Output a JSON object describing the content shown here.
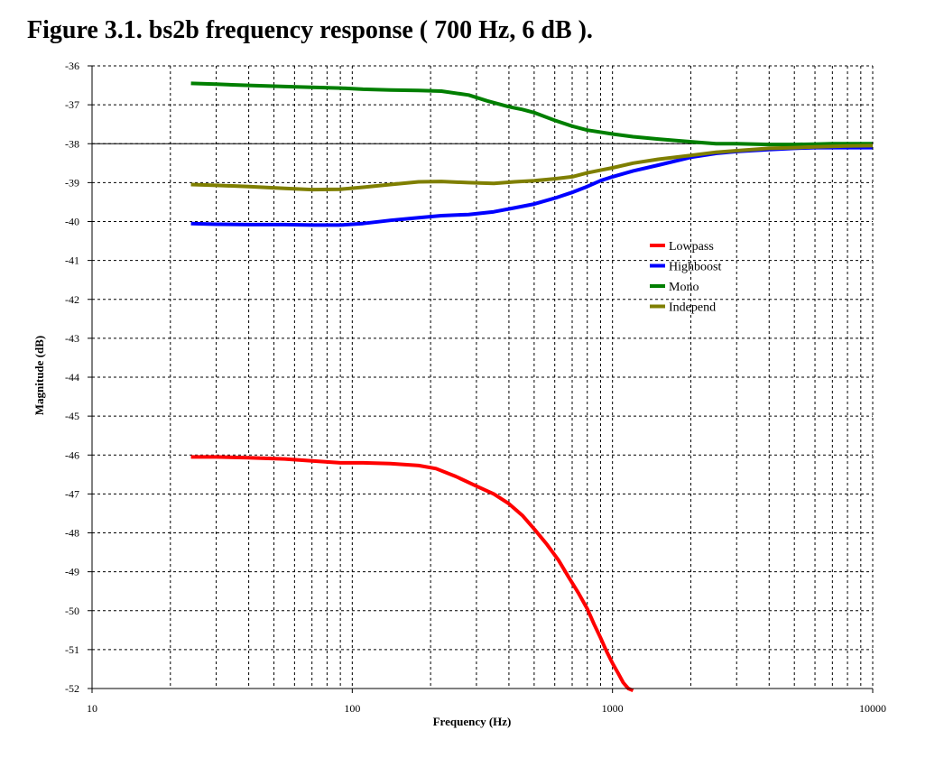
{
  "figure": {
    "title": "Figure 3.1. bs2b frequency response ( 700 Hz, 6 dB )."
  },
  "chart_data": {
    "type": "line",
    "title": "",
    "xlabel": "Frequency (Hz)",
    "ylabel": "Magnitude (dB)",
    "xscale": "log",
    "xlim": [
      10,
      10000
    ],
    "ylim": [
      -52,
      -36
    ],
    "xticks": [
      10,
      100,
      1000,
      10000
    ],
    "xtick_labels": [
      "10",
      "100",
      "1000",
      "10000"
    ],
    "yticks": [
      -36,
      -37,
      -38,
      -39,
      -40,
      -41,
      -42,
      -43,
      -44,
      -45,
      -46,
      -47,
      -48,
      -49,
      -50,
      -51,
      -52
    ],
    "ytick_labels": [
      "-36",
      "-37",
      "-38",
      "-39",
      "-40",
      "-41",
      "-42",
      "-43",
      "-44",
      "-45",
      "-46",
      "-47",
      "-48",
      "-49",
      "-50",
      "-51",
      "-52"
    ],
    "grid": true,
    "reference_line": -38,
    "legend": {
      "position": "right-middle"
    },
    "series": [
      {
        "name": "Lowpass",
        "color": "#ff0000",
        "x": [
          24,
          30,
          40,
          55,
          70,
          90,
          110,
          140,
          180,
          210,
          250,
          300,
          350,
          400,
          450,
          500,
          560,
          620,
          680,
          740,
          800,
          850,
          900,
          950,
          1000,
          1050,
          1100,
          1150,
          1200
        ],
        "y": [
          -46.05,
          -46.05,
          -46.07,
          -46.1,
          -46.15,
          -46.2,
          -46.2,
          -46.22,
          -46.27,
          -46.35,
          -46.55,
          -46.8,
          -47.0,
          -47.25,
          -47.55,
          -47.9,
          -48.3,
          -48.7,
          -49.15,
          -49.55,
          -49.95,
          -50.35,
          -50.7,
          -51.05,
          -51.35,
          -51.6,
          -51.85,
          -52.0,
          -52.05
        ]
      },
      {
        "name": "Highboost",
        "color": "#0000ff",
        "x": [
          24,
          30,
          40,
          55,
          70,
          90,
          110,
          140,
          180,
          220,
          280,
          350,
          420,
          500,
          600,
          700,
          800,
          900,
          1000,
          1200,
          1500,
          2000,
          2500,
          3000,
          4000,
          5000,
          6000,
          7000,
          8000,
          9000,
          10000
        ],
        "y": [
          -40.05,
          -40.07,
          -40.08,
          -40.08,
          -40.09,
          -40.09,
          -40.05,
          -39.97,
          -39.9,
          -39.85,
          -39.82,
          -39.75,
          -39.65,
          -39.55,
          -39.4,
          -39.25,
          -39.1,
          -38.95,
          -38.85,
          -38.7,
          -38.55,
          -38.35,
          -38.25,
          -38.2,
          -38.15,
          -38.12,
          -38.1,
          -38.1,
          -38.1,
          -38.1,
          -38.1
        ]
      },
      {
        "name": "Mono",
        "color": "#007f00",
        "x": [
          24,
          30,
          40,
          55,
          70,
          90,
          110,
          140,
          180,
          220,
          280,
          330,
          400,
          450,
          500,
          600,
          700,
          800,
          1000,
          1200,
          1500,
          2000,
          2500,
          3000,
          4000,
          5000,
          6000,
          7000,
          8000,
          10000
        ],
        "y": [
          -36.45,
          -36.47,
          -36.5,
          -36.53,
          -36.55,
          -36.57,
          -36.6,
          -36.62,
          -36.63,
          -36.65,
          -36.75,
          -36.9,
          -37.05,
          -37.12,
          -37.2,
          -37.4,
          -37.55,
          -37.65,
          -37.75,
          -37.82,
          -37.88,
          -37.95,
          -38.0,
          -38.0,
          -38.02,
          -38.02,
          -38.01,
          -38.0,
          -38.0,
          -38.0
        ]
      },
      {
        "name": "Independ",
        "color": "#7f7f00",
        "x": [
          24,
          30,
          40,
          55,
          70,
          90,
          110,
          140,
          180,
          220,
          280,
          350,
          420,
          500,
          600,
          700,
          800,
          900,
          1000,
          1200,
          1500,
          2000,
          2500,
          3000,
          4000,
          5000,
          6000,
          7000,
          8000,
          10000
        ],
        "y": [
          -39.05,
          -39.07,
          -39.1,
          -39.15,
          -39.18,
          -39.17,
          -39.12,
          -39.05,
          -38.98,
          -38.97,
          -39.0,
          -39.02,
          -38.98,
          -38.95,
          -38.9,
          -38.85,
          -38.75,
          -38.68,
          -38.62,
          -38.5,
          -38.4,
          -38.3,
          -38.22,
          -38.18,
          -38.12,
          -38.1,
          -38.08,
          -38.07,
          -38.06,
          -38.05
        ]
      }
    ]
  }
}
